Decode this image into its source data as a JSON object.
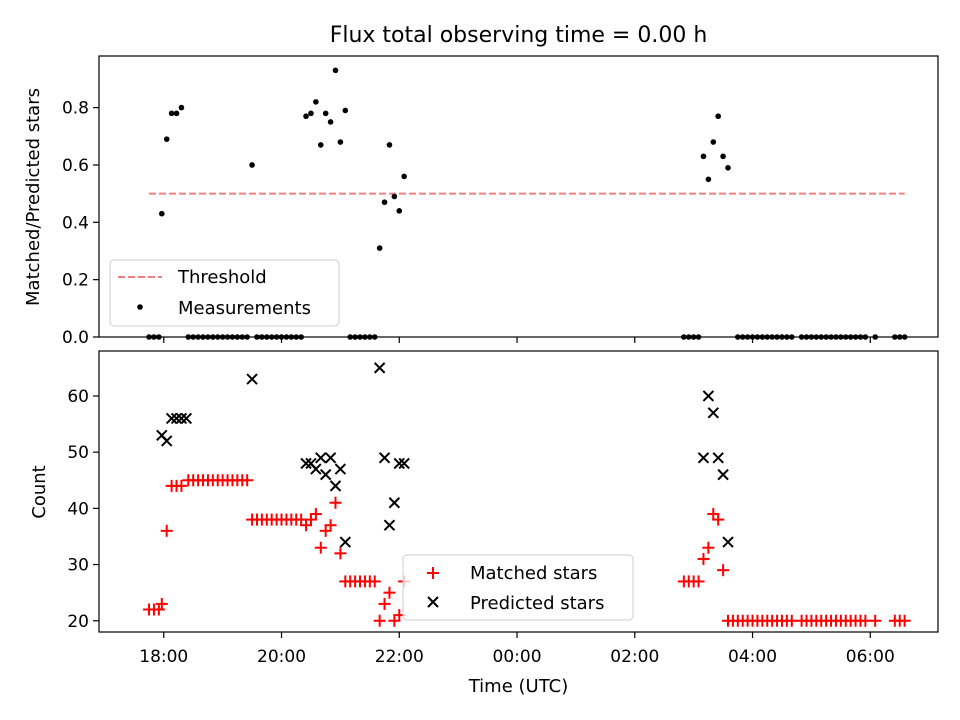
{
  "chart_data": [
    {
      "type": "scatter",
      "title": "Flux total observing time = 0.00 h",
      "ylabel": "Matched/Predicted stars",
      "xlabel": "",
      "ylim": [
        0,
        0.98
      ],
      "yticks": [
        "0.0",
        "0.2",
        "0.4",
        "0.6",
        "0.8"
      ],
      "xlim_hours": [
        16.9,
        31.15
      ],
      "threshold": {
        "name": "Threshold",
        "value": 0.5,
        "x_range": [
          "17:45",
          "06:35"
        ],
        "color": "#f08080"
      },
      "legend": {
        "position": "lower-left",
        "entries": [
          "Threshold",
          "Measurements"
        ]
      },
      "series": [
        {
          "name": "Measurements",
          "color": "#000000",
          "points": [
            [
              "17:45",
              0
            ],
            [
              "17:50",
              0
            ],
            [
              "17:55",
              0
            ],
            [
              "17:58",
              0.43
            ],
            [
              "18:03",
              0.69
            ],
            [
              "18:08",
              0.78
            ],
            [
              "18:13",
              0.78
            ],
            [
              "18:18",
              0.8
            ],
            [
              "18:25",
              0
            ],
            [
              "18:30",
              0
            ],
            [
              "18:35",
              0
            ],
            [
              "18:40",
              0
            ],
            [
              "18:45",
              0
            ],
            [
              "18:50",
              0
            ],
            [
              "18:55",
              0
            ],
            [
              "19:00",
              0
            ],
            [
              "19:05",
              0
            ],
            [
              "19:10",
              0
            ],
            [
              "19:15",
              0
            ],
            [
              "19:20",
              0
            ],
            [
              "19:25",
              0
            ],
            [
              "19:30",
              0.6
            ],
            [
              "19:35",
              0
            ],
            [
              "19:40",
              0
            ],
            [
              "19:45",
              0
            ],
            [
              "19:50",
              0
            ],
            [
              "19:55",
              0
            ],
            [
              "20:00",
              0
            ],
            [
              "20:05",
              0
            ],
            [
              "20:10",
              0
            ],
            [
              "20:15",
              0
            ],
            [
              "20:20",
              0
            ],
            [
              "20:25",
              0.77
            ],
            [
              "20:30",
              0.78
            ],
            [
              "20:35",
              0.82
            ],
            [
              "20:40",
              0.67
            ],
            [
              "20:45",
              0.78
            ],
            [
              "20:50",
              0.75
            ],
            [
              "20:55",
              0.93
            ],
            [
              "21:00",
              0.68
            ],
            [
              "21:05",
              0.79
            ],
            [
              "21:10",
              0
            ],
            [
              "21:15",
              0
            ],
            [
              "21:20",
              0
            ],
            [
              "21:25",
              0
            ],
            [
              "21:30",
              0
            ],
            [
              "21:35",
              0
            ],
            [
              "21:40",
              0.31
            ],
            [
              "21:45",
              0.47
            ],
            [
              "21:50",
              0.67
            ],
            [
              "21:55",
              0.49
            ],
            [
              "22:00",
              0.44
            ],
            [
              "22:05",
              0.56
            ],
            [
              "02:50",
              0
            ],
            [
              "02:55",
              0
            ],
            [
              "03:00",
              0
            ],
            [
              "03:05",
              0
            ],
            [
              "03:10",
              0.63
            ],
            [
              "03:15",
              0.55
            ],
            [
              "03:20",
              0.68
            ],
            [
              "03:25",
              0.77
            ],
            [
              "03:30",
              0.63
            ],
            [
              "03:35",
              0.59
            ],
            [
              "03:45",
              0
            ],
            [
              "03:50",
              0
            ],
            [
              "03:55",
              0
            ],
            [
              "04:00",
              0
            ],
            [
              "04:05",
              0
            ],
            [
              "04:10",
              0
            ],
            [
              "04:15",
              0
            ],
            [
              "04:20",
              0
            ],
            [
              "04:25",
              0
            ],
            [
              "04:30",
              0
            ],
            [
              "04:35",
              0
            ],
            [
              "04:40",
              0
            ],
            [
              "04:50",
              0
            ],
            [
              "04:55",
              0
            ],
            [
              "05:00",
              0
            ],
            [
              "05:05",
              0
            ],
            [
              "05:10",
              0
            ],
            [
              "05:15",
              0
            ],
            [
              "05:20",
              0
            ],
            [
              "05:25",
              0
            ],
            [
              "05:30",
              0
            ],
            [
              "05:35",
              0
            ],
            [
              "05:40",
              0
            ],
            [
              "05:45",
              0
            ],
            [
              "05:50",
              0
            ],
            [
              "05:55",
              0
            ],
            [
              "06:05",
              0
            ],
            [
              "06:25",
              0
            ],
            [
              "06:30",
              0
            ],
            [
              "06:35",
              0
            ]
          ]
        }
      ]
    },
    {
      "type": "scatter",
      "title": "",
      "xlabel": "Time (UTC)",
      "ylabel": "Count",
      "ylim": [
        18,
        68
      ],
      "yticks": [
        "20",
        "30",
        "40",
        "50",
        "60"
      ],
      "xlim_hours": [
        16.9,
        31.15
      ],
      "xticks": [
        "18:00",
        "20:00",
        "22:00",
        "00:00",
        "02:00",
        "04:00",
        "06:00"
      ],
      "legend": {
        "position": "lower-center",
        "entries": [
          "Matched stars",
          "Predicted stars"
        ]
      },
      "series": [
        {
          "name": "Matched stars",
          "marker": "plus",
          "color": "#ff0000",
          "points": [
            [
              "17:45",
              22
            ],
            [
              "17:50",
              22
            ],
            [
              "17:55",
              22
            ],
            [
              "17:58",
              23
            ],
            [
              "18:03",
              36
            ],
            [
              "18:08",
              44
            ],
            [
              "18:13",
              44
            ],
            [
              "18:18",
              44
            ],
            [
              "18:25",
              45
            ],
            [
              "18:30",
              45
            ],
            [
              "18:35",
              45
            ],
            [
              "18:40",
              45
            ],
            [
              "18:45",
              45
            ],
            [
              "18:50",
              45
            ],
            [
              "18:55",
              45
            ],
            [
              "19:00",
              45
            ],
            [
              "19:05",
              45
            ],
            [
              "19:10",
              45
            ],
            [
              "19:15",
              45
            ],
            [
              "19:20",
              45
            ],
            [
              "19:25",
              45
            ],
            [
              "19:30",
              38
            ],
            [
              "19:35",
              38
            ],
            [
              "19:40",
              38
            ],
            [
              "19:45",
              38
            ],
            [
              "19:50",
              38
            ],
            [
              "19:55",
              38
            ],
            [
              "20:00",
              38
            ],
            [
              "20:05",
              38
            ],
            [
              "20:10",
              38
            ],
            [
              "20:15",
              38
            ],
            [
              "20:20",
              38
            ],
            [
              "20:25",
              37
            ],
            [
              "20:30",
              38
            ],
            [
              "20:35",
              39
            ],
            [
              "20:40",
              33
            ],
            [
              "20:45",
              36
            ],
            [
              "20:50",
              37
            ],
            [
              "20:55",
              41
            ],
            [
              "21:00",
              32
            ],
            [
              "21:05",
              27
            ],
            [
              "21:10",
              27
            ],
            [
              "21:15",
              27
            ],
            [
              "21:20",
              27
            ],
            [
              "21:25",
              27
            ],
            [
              "21:30",
              27
            ],
            [
              "21:35",
              27
            ],
            [
              "21:40",
              20
            ],
            [
              "21:45",
              23
            ],
            [
              "21:50",
              25
            ],
            [
              "21:55",
              20
            ],
            [
              "22:00",
              21
            ],
            [
              "22:05",
              27
            ],
            [
              "02:50",
              27
            ],
            [
              "02:55",
              27
            ],
            [
              "03:00",
              27
            ],
            [
              "03:05",
              27
            ],
            [
              "03:10",
              31
            ],
            [
              "03:15",
              33
            ],
            [
              "03:20",
              39
            ],
            [
              "03:25",
              38
            ],
            [
              "03:30",
              29
            ],
            [
              "03:35",
              20
            ],
            [
              "03:40",
              20
            ],
            [
              "03:45",
              20
            ],
            [
              "03:50",
              20
            ],
            [
              "03:55",
              20
            ],
            [
              "04:00",
              20
            ],
            [
              "04:05",
              20
            ],
            [
              "04:10",
              20
            ],
            [
              "04:15",
              20
            ],
            [
              "04:20",
              20
            ],
            [
              "04:25",
              20
            ],
            [
              "04:30",
              20
            ],
            [
              "04:35",
              20
            ],
            [
              "04:40",
              20
            ],
            [
              "04:50",
              20
            ],
            [
              "04:55",
              20
            ],
            [
              "05:00",
              20
            ],
            [
              "05:05",
              20
            ],
            [
              "05:10",
              20
            ],
            [
              "05:15",
              20
            ],
            [
              "05:20",
              20
            ],
            [
              "05:25",
              20
            ],
            [
              "05:30",
              20
            ],
            [
              "05:35",
              20
            ],
            [
              "05:40",
              20
            ],
            [
              "05:45",
              20
            ],
            [
              "05:50",
              20
            ],
            [
              "05:55",
              20
            ],
            [
              "06:05",
              20
            ],
            [
              "06:25",
              20
            ],
            [
              "06:30",
              20
            ],
            [
              "06:35",
              20
            ]
          ]
        },
        {
          "name": "Predicted stars",
          "marker": "x",
          "color": "#000000",
          "points": [
            [
              "17:58",
              53
            ],
            [
              "18:03",
              52
            ],
            [
              "18:08",
              56
            ],
            [
              "18:13",
              56
            ],
            [
              "18:18",
              56
            ],
            [
              "18:23",
              56
            ],
            [
              "19:30",
              63
            ],
            [
              "20:25",
              48
            ],
            [
              "20:30",
              48
            ],
            [
              "20:35",
              47
            ],
            [
              "20:40",
              49
            ],
            [
              "20:45",
              46
            ],
            [
              "20:50",
              49
            ],
            [
              "20:55",
              44
            ],
            [
              "21:00",
              47
            ],
            [
              "21:05",
              34
            ],
            [
              "21:40",
              65
            ],
            [
              "21:45",
              49
            ],
            [
              "21:50",
              37
            ],
            [
              "21:55",
              41
            ],
            [
              "22:00",
              48
            ],
            [
              "22:05",
              48
            ],
            [
              "03:10",
              49
            ],
            [
              "03:15",
              60
            ],
            [
              "03:20",
              57
            ],
            [
              "03:25",
              49
            ],
            [
              "03:30",
              46
            ],
            [
              "03:35",
              34
            ]
          ]
        }
      ]
    }
  ]
}
